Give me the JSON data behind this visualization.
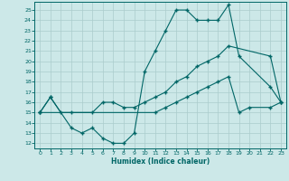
{
  "xlabel": "Humidex (Indice chaleur)",
  "line_color": "#006666",
  "bg_color": "#cce8e8",
  "grid_color": "#aacccc",
  "ylim": [
    11.5,
    25.8
  ],
  "xlim": [
    -0.5,
    23.5
  ],
  "yticks": [
    12,
    13,
    14,
    15,
    16,
    17,
    18,
    19,
    20,
    21,
    22,
    23,
    24,
    25
  ],
  "xticks": [
    0,
    1,
    2,
    3,
    4,
    5,
    6,
    7,
    8,
    9,
    10,
    11,
    12,
    13,
    14,
    15,
    16,
    17,
    18,
    19,
    20,
    21,
    22,
    23
  ],
  "s1_x": [
    0,
    1,
    3,
    4,
    5,
    6,
    7,
    8,
    9,
    10,
    11,
    12,
    13,
    14,
    15,
    16,
    17,
    18,
    19,
    22,
    23
  ],
  "s1_y": [
    15,
    16.5,
    13.5,
    13,
    13.5,
    12.5,
    12,
    12,
    13,
    19,
    21,
    23,
    25,
    25,
    24,
    24,
    24,
    25.5,
    20.5,
    17.5,
    16
  ],
  "s2_x": [
    0,
    1,
    2,
    3,
    5,
    6,
    7,
    8,
    9,
    10,
    11,
    12,
    13,
    14,
    15,
    16,
    17,
    18,
    22,
    23
  ],
  "s2_y": [
    15,
    16.5,
    15,
    15,
    15,
    16,
    16,
    15.5,
    15.5,
    16,
    16.5,
    17,
    18,
    18.5,
    19.5,
    20,
    20.5,
    21.5,
    20.5,
    16
  ],
  "s3_x": [
    0,
    11,
    12,
    13,
    14,
    15,
    16,
    17,
    18,
    19,
    20,
    22,
    23
  ],
  "s3_y": [
    15,
    15,
    15.5,
    16,
    16.5,
    17,
    17.5,
    18,
    18.5,
    15,
    15.5,
    15.5,
    16
  ]
}
